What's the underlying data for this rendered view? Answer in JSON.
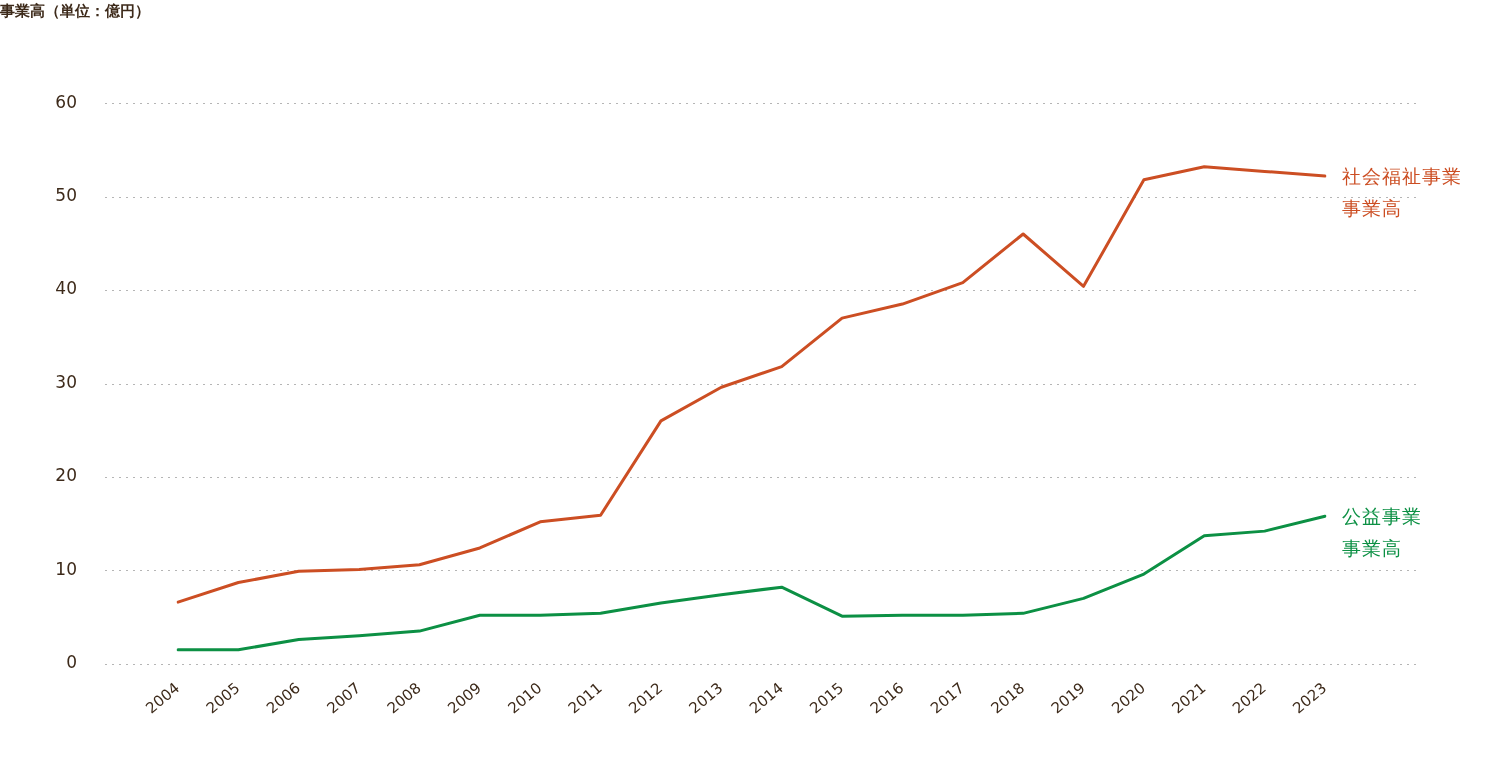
{
  "chart_data": {
    "type": "line",
    "ylabel": "事業高（単位：億円）",
    "categories": [
      "2004",
      "2005",
      "2006",
      "2007",
      "2008",
      "2009",
      "2010",
      "2011",
      "2012",
      "2013",
      "2014",
      "2015",
      "2016",
      "2017",
      "2018",
      "2019",
      "2020",
      "2021",
      "2022",
      "2023"
    ],
    "series": [
      {
        "name": "社会福祉事業事業高",
        "color": "#cc4e23",
        "values": [
          6.6,
          8.7,
          9.9,
          10.1,
          10.6,
          12.4,
          15.2,
          15.9,
          26.0,
          29.6,
          31.8,
          37.0,
          38.5,
          40.8,
          46.0,
          40.4,
          51.8,
          53.2,
          52.7,
          52.2
        ]
      },
      {
        "name": "公益事業事業高",
        "color": "#0c9044",
        "values": [
          1.5,
          1.5,
          2.6,
          3.0,
          3.5,
          5.2,
          5.2,
          5.4,
          6.5,
          7.4,
          8.2,
          5.1,
          5.2,
          5.2,
          5.4,
          7.0,
          9.6,
          13.7,
          14.2,
          15.8
        ]
      }
    ],
    "ylim": [
      0,
      60
    ],
    "yticks": [
      0,
      10,
      20,
      30,
      40,
      50,
      60
    ],
    "grid": "y",
    "legend": false,
    "marker": "none",
    "line_style": "solid"
  }
}
